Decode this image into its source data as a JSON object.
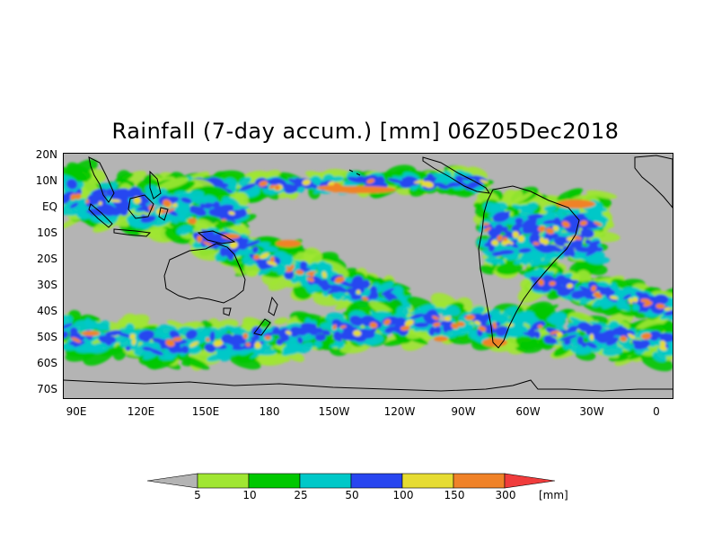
{
  "title": "Rainfall (7-day accum.) [mm] 06Z05Dec2018",
  "lat_labels": [
    "20N",
    "10N",
    "EQ",
    "10S",
    "20S",
    "30S",
    "40S",
    "50S",
    "60S",
    "70S"
  ],
  "lon_labels": [
    "90E",
    "120E",
    "150E",
    "180",
    "150W",
    "120W",
    "90W",
    "60W",
    "30W",
    "0"
  ],
  "colorbar": {
    "unit": "[mm]",
    "thresholds": [
      "5",
      "10",
      "25",
      "50",
      "100",
      "150",
      "300"
    ],
    "colors": [
      "#b4b4b4",
      "#a0e632",
      "#00c800",
      "#00c8c8",
      "#2846f0",
      "#e6dc32",
      "#f08228",
      "#f03c3c"
    ]
  },
  "map_colors": {
    "background": "#b4b4b4",
    "coastline": "#000000"
  }
}
